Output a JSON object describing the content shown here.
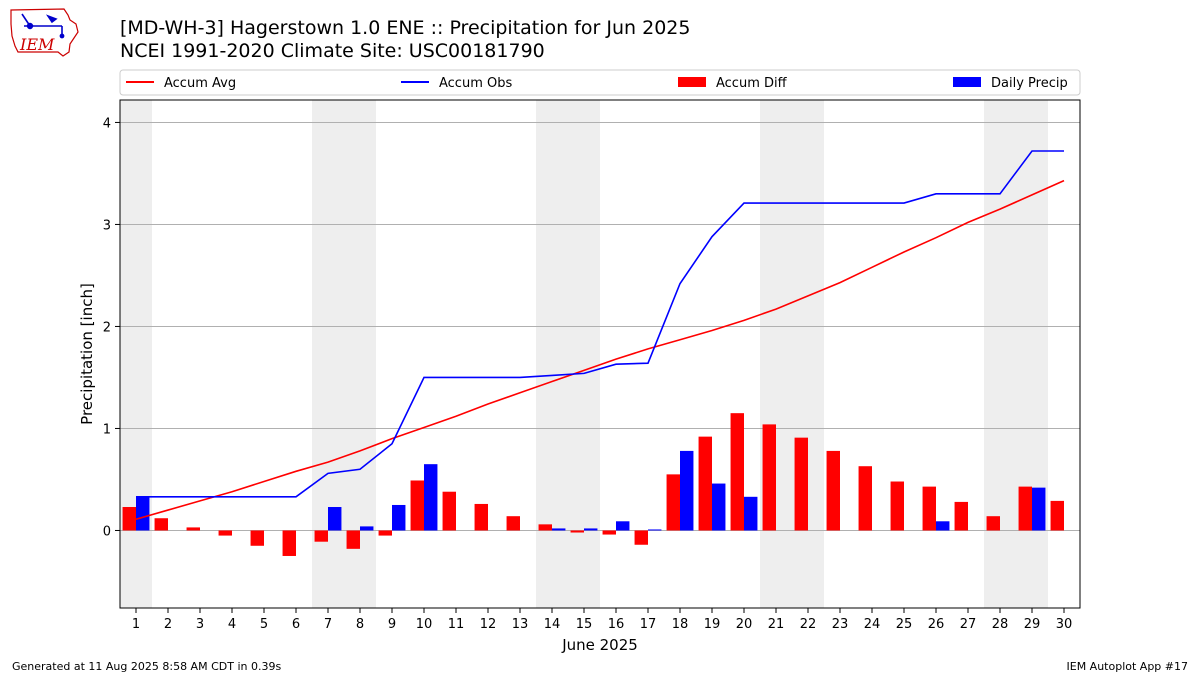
{
  "header": {
    "title_line1": "[MD-WH-3] Hagerstown 1.0 ENE :: Precipitation for Jun 2025",
    "title_line2": "NCEI 1991-2020 Climate Site: USC00181790",
    "logo_text": "IEM"
  },
  "footer": {
    "generated": "Generated at 11 Aug 2025 8:58 AM CDT in 0.39s",
    "app": "IEM Autoplot App #17"
  },
  "chart_data": {
    "type": "bar",
    "xlabel": "June 2025",
    "ylabel": "Precipitation [inch]",
    "ylim": [
      -0.76,
      4.22
    ],
    "xlim": [
      0.5,
      30.5
    ],
    "yticks": [
      0,
      1,
      2,
      3,
      4
    ],
    "categories": [
      "1",
      "2",
      "3",
      "4",
      "5",
      "6",
      "7",
      "8",
      "9",
      "10",
      "11",
      "12",
      "13",
      "14",
      "15",
      "16",
      "17",
      "18",
      "19",
      "20",
      "21",
      "22",
      "23",
      "24",
      "25",
      "26",
      "27",
      "28",
      "29",
      "30"
    ],
    "weekend_shading": [
      [
        0.5,
        1.5
      ],
      [
        6.5,
        8.5
      ],
      [
        13.5,
        15.5
      ],
      [
        20.5,
        22.5
      ],
      [
        27.5,
        29.5
      ]
    ],
    "grid": "horizontal",
    "legend_position": "top",
    "colors": {
      "avg": "#ff0000",
      "obs": "#0000ff",
      "diff": "#ff0000",
      "daily": "#0000ff",
      "shade": "#eeeeee",
      "grid": "#b0b0b0"
    },
    "series": [
      {
        "name": "Accum Avg",
        "kind": "line",
        "values": [
          0.11,
          0.2,
          0.29,
          0.38,
          0.48,
          0.58,
          0.67,
          0.78,
          0.9,
          1.01,
          1.12,
          1.24,
          1.35,
          1.46,
          1.57,
          1.68,
          1.78,
          1.87,
          1.96,
          2.06,
          2.17,
          2.3,
          2.43,
          2.58,
          2.73,
          2.87,
          3.02,
          3.15,
          3.29,
          3.43
        ]
      },
      {
        "name": "Accum Obs",
        "kind": "line",
        "values": [
          0.33,
          0.33,
          0.33,
          0.33,
          0.33,
          0.33,
          0.56,
          0.6,
          0.85,
          1.5,
          1.5,
          1.5,
          1.5,
          1.52,
          1.54,
          1.63,
          1.64,
          2.42,
          2.88,
          3.21,
          3.21,
          3.21,
          3.21,
          3.21,
          3.21,
          3.3,
          3.3,
          3.3,
          3.72,
          3.72
        ]
      },
      {
        "name": "Accum Diff",
        "kind": "bar",
        "values": [
          0.23,
          0.12,
          0.03,
          -0.05,
          -0.15,
          -0.25,
          -0.11,
          -0.18,
          -0.05,
          0.49,
          0.38,
          0.26,
          0.14,
          0.06,
          -0.02,
          -0.04,
          -0.14,
          0.55,
          0.92,
          1.15,
          1.04,
          0.91,
          0.78,
          0.63,
          0.48,
          0.43,
          0.28,
          0.14,
          0.43,
          0.29
        ]
      },
      {
        "name": "Daily Precip",
        "kind": "bar",
        "values": [
          0.33,
          0,
          0,
          0,
          0,
          0,
          0.23,
          0.04,
          0.25,
          0.65,
          0,
          0,
          0,
          0.02,
          0.02,
          0.09,
          0.01,
          0.78,
          0.46,
          0.33,
          0,
          0,
          0,
          0,
          0,
          0.09,
          0,
          0,
          0.42,
          0
        ]
      }
    ]
  }
}
